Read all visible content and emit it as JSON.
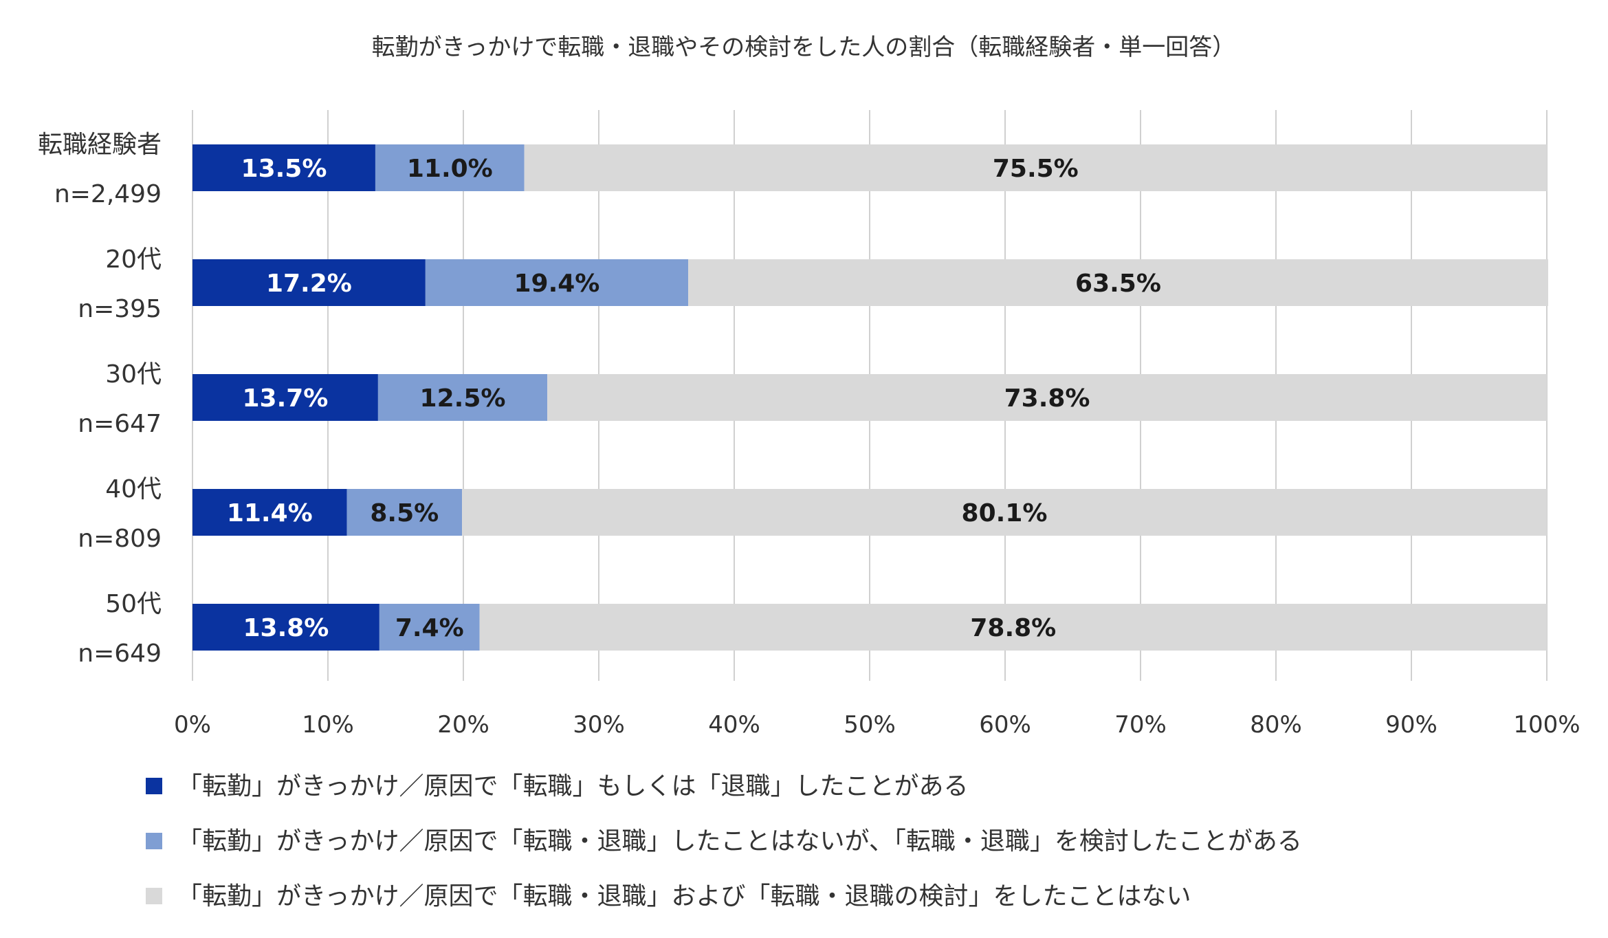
{
  "chart_data": {
    "type": "bar",
    "orientation": "horizontal",
    "stacked": true,
    "title": "転勤がきっかけで転職・退職やその検討をした人の割合（転職経験者・単一回答）",
    "categories": [
      {
        "label": "転職経験者",
        "n": "n=2,499"
      },
      {
        "label": "20代",
        "n": "n=395"
      },
      {
        "label": "30代",
        "n": "n=647"
      },
      {
        "label": "40代",
        "n": "n=809"
      },
      {
        "label": "50代",
        "n": "n=649"
      }
    ],
    "series": [
      {
        "name": "「転勤」がきっかけ／原因で「転職」もしくは「退職」したことがある",
        "color": "#0a33a0",
        "label_color": "#ffffff",
        "values": [
          13.5,
          17.2,
          13.7,
          11.4,
          13.8
        ],
        "labels": [
          "13.5%",
          "17.2%",
          "13.7%",
          "11.4%",
          "13.8%"
        ]
      },
      {
        "name": "「転勤」がきっかけ／原因で「転職・退職」したことはないが、「転職・退職」を検討したことがある",
        "color": "#7f9ed3",
        "label_color": "#1a1a1a",
        "values": [
          11.0,
          19.4,
          12.5,
          8.5,
          7.4
        ],
        "labels": [
          "11.0%",
          "19.4%",
          "12.5%",
          "8.5%",
          "7.4%"
        ]
      },
      {
        "name": "「転勤」がきっかけ／原因で「転職・退職」および「転職・退職の検討」をしたことはない",
        "color": "#d9d9d9",
        "label_color": "#1a1a1a",
        "values": [
          75.5,
          63.5,
          73.8,
          80.1,
          78.8
        ],
        "labels": [
          "75.5%",
          "63.5%",
          "73.8%",
          "80.1%",
          "78.8%"
        ]
      }
    ],
    "x_ticks": [
      "0%",
      "10%",
      "20%",
      "30%",
      "40%",
      "50%",
      "60%",
      "70%",
      "80%",
      "90%",
      "100%"
    ],
    "xlim": [
      0,
      100
    ],
    "grid": "vertical",
    "legend_position": "bottom"
  }
}
